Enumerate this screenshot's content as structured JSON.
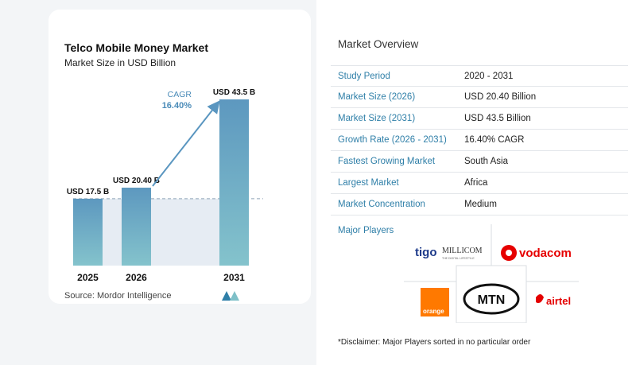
{
  "chart_data": {
    "type": "bar",
    "title": "Telco Mobile Money Market",
    "subtitle": "Market Size in USD Billion",
    "categories": [
      "2025",
      "2026",
      "2031"
    ],
    "values": [
      17.5,
      20.4,
      43.5
    ],
    "value_labels": [
      "USD 17.5 B",
      "USD 20.40 B",
      "USD 43.5 B"
    ],
    "annotation": {
      "label": "CAGR",
      "value": "16.40%"
    },
    "colors": {
      "bar_top": "#5d98bf",
      "bar_bottom": "#84c3cc",
      "arrow": "#5a96c0",
      "shade": "#e6ecf3"
    }
  },
  "source": "Source:  Mordor Intelligence",
  "overview": {
    "title": "Market Overview",
    "rows": [
      {
        "key": "Study Period",
        "value": "2020 - 2031"
      },
      {
        "key": "Market Size (2026)",
        "value": "USD 20.40 Billion"
      },
      {
        "key": "Market Size (2031)",
        "value": "USD 43.5 Billion"
      },
      {
        "key": "Growth Rate (2026 - 2031)",
        "value": "16.40% CAGR"
      },
      {
        "key": "Fastest Growing Market",
        "value": "South Asia"
      },
      {
        "key": "Largest Market",
        "value": "Africa"
      },
      {
        "key": "Market Concentration",
        "value": "Medium"
      }
    ]
  },
  "players": {
    "title": "Major Players",
    "logos": {
      "tigo": "tigo",
      "millicom": "MILLICOM",
      "millicom_tagline": "THE DIGITAL LIFESTYLE",
      "vodacom": "vodacom",
      "orange": "orange",
      "mtn": "MTN",
      "airtel": "airtel"
    },
    "disclaimer": "*Disclaimer: Major Players sorted in no particular order"
  }
}
